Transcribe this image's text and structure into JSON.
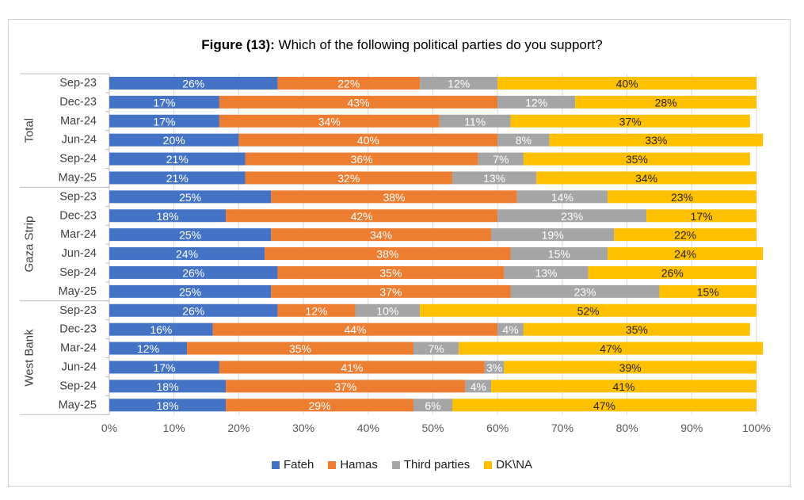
{
  "chart_data": {
    "type": "bar",
    "orientation": "horizontal-stacked-100",
    "title_bold": "Figure (13):",
    "title_rest": " Which of the following political parties do you support?",
    "xlabel": "",
    "ylabel": "",
    "xlim": [
      0,
      100
    ],
    "x_ticks": [
      "0%",
      "10%",
      "20%",
      "30%",
      "40%",
      "50%",
      "60%",
      "70%",
      "80%",
      "90%",
      "100%"
    ],
    "series": [
      {
        "name": "Fateh",
        "color": "#4472C4"
      },
      {
        "name": "Hamas",
        "color": "#ED7D31"
      },
      {
        "name": "Third parties",
        "color": "#A5A5A5"
      },
      {
        "name": "DK\\NA",
        "color": "#FFC000"
      }
    ],
    "groups": [
      {
        "name": "Total",
        "rows": [
          {
            "label": "Sep-23",
            "values": [
              26,
              22,
              12,
              40
            ]
          },
          {
            "label": "Dec-23",
            "values": [
              17,
              43,
              12,
              28
            ]
          },
          {
            "label": "Mar-24",
            "values": [
              17,
              34,
              11,
              37
            ]
          },
          {
            "label": "Jun-24",
            "values": [
              20,
              40,
              8,
              33
            ]
          },
          {
            "label": "Sep-24",
            "values": [
              21,
              36,
              7,
              35
            ]
          },
          {
            "label": "May-25",
            "values": [
              21,
              32,
              13,
              34
            ]
          }
        ]
      },
      {
        "name": "Gaza Strip",
        "rows": [
          {
            "label": "Sep-23",
            "values": [
              25,
              38,
              14,
              23
            ]
          },
          {
            "label": "Dec-23",
            "values": [
              18,
              42,
              23,
              17
            ]
          },
          {
            "label": "Mar-24",
            "values": [
              25,
              34,
              19,
              22
            ]
          },
          {
            "label": "Jun-24",
            "values": [
              24,
              38,
              15,
              24
            ]
          },
          {
            "label": "Sep-24",
            "values": [
              26,
              35,
              13,
              26
            ]
          },
          {
            "label": "May-25",
            "values": [
              25,
              37,
              23,
              15
            ]
          }
        ]
      },
      {
        "name": "West Bank",
        "rows": [
          {
            "label": "Sep-23",
            "values": [
              26,
              12,
              10,
              52
            ]
          },
          {
            "label": "Dec-23",
            "values": [
              16,
              44,
              4,
              35
            ]
          },
          {
            "label": "Mar-24",
            "values": [
              12,
              35,
              7,
              47
            ]
          },
          {
            "label": "Jun-24",
            "values": [
              17,
              41,
              3,
              39
            ]
          },
          {
            "label": "Sep-24",
            "values": [
              18,
              37,
              4,
              41
            ]
          },
          {
            "label": "May-25",
            "values": [
              18,
              29,
              6,
              47
            ]
          }
        ]
      }
    ],
    "legend_position": "bottom"
  }
}
